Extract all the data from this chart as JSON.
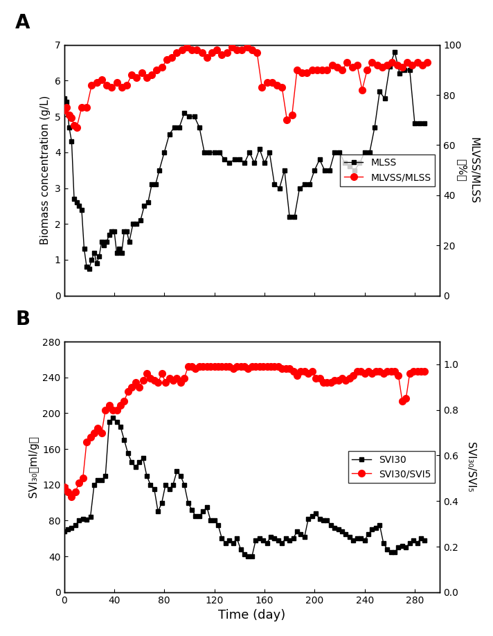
{
  "panel_A": {
    "MLSS_x": [
      0,
      2,
      4,
      6,
      8,
      10,
      12,
      14,
      16,
      18,
      20,
      22,
      24,
      26,
      28,
      30,
      32,
      34,
      36,
      38,
      40,
      42,
      44,
      46,
      48,
      50,
      52,
      55,
      58,
      61,
      64,
      67,
      70,
      73,
      76,
      80,
      84,
      88,
      92,
      96,
      100,
      104,
      108,
      112,
      116,
      120,
      124,
      128,
      132,
      136,
      140,
      144,
      148,
      152,
      156,
      160,
      164,
      168,
      172,
      176,
      180,
      184,
      188,
      192,
      196,
      200,
      204,
      208,
      212,
      216,
      220,
      224,
      228,
      232,
      236,
      240,
      244,
      248,
      252,
      256,
      260,
      264,
      268,
      272,
      276,
      280,
      284,
      288
    ],
    "MLSS_y": [
      5.5,
      5.4,
      4.7,
      4.3,
      2.7,
      2.6,
      2.5,
      2.4,
      1.3,
      0.8,
      0.75,
      1.0,
      1.2,
      0.9,
      1.1,
      1.5,
      1.4,
      1.5,
      1.7,
      1.8,
      1.8,
      1.2,
      1.3,
      1.2,
      1.8,
      1.8,
      1.5,
      2.0,
      2.0,
      2.1,
      2.5,
      2.6,
      3.1,
      3.1,
      3.5,
      4.0,
      4.5,
      4.7,
      4.7,
      5.1,
      5.0,
      5.0,
      4.7,
      4.0,
      4.0,
      4.0,
      4.0,
      3.8,
      3.7,
      3.8,
      3.8,
      3.7,
      4.0,
      3.7,
      4.1,
      3.7,
      4.0,
      3.1,
      3.0,
      3.5,
      2.2,
      2.2,
      3.0,
      3.1,
      3.1,
      3.5,
      3.8,
      3.5,
      3.5,
      4.0,
      4.0,
      3.7,
      3.6,
      3.5,
      3.7,
      4.0,
      4.0,
      4.7,
      5.7,
      5.5,
      6.4,
      6.8,
      6.2,
      6.3,
      6.3,
      4.8,
      4.8,
      4.8
    ],
    "MLVSS_x": [
      0,
      2,
      4,
      6,
      8,
      10,
      14,
      18,
      22,
      26,
      30,
      34,
      38,
      42,
      46,
      50,
      54,
      58,
      62,
      66,
      70,
      74,
      78,
      82,
      86,
      90,
      94,
      98,
      102,
      106,
      110,
      114,
      118,
      122,
      126,
      130,
      134,
      138,
      142,
      146,
      150,
      154,
      158,
      162,
      166,
      170,
      174,
      178,
      182,
      186,
      190,
      194,
      198,
      202,
      206,
      210,
      214,
      218,
      222,
      226,
      230,
      234,
      238,
      242,
      246,
      250,
      254,
      258,
      262,
      266,
      270,
      274,
      278,
      282,
      286,
      290
    ],
    "MLVSS_y": [
      74,
      75,
      72,
      71,
      68,
      67,
      75,
      75,
      84,
      85,
      86,
      84,
      83,
      85,
      83,
      84,
      88,
      87,
      89,
      87,
      88,
      90,
      91,
      94,
      95,
      97,
      98,
      99,
      98,
      98,
      97,
      95,
      97,
      98,
      96,
      97,
      99,
      98,
      98,
      99,
      98,
      97,
      83,
      85,
      85,
      84,
      83,
      70,
      72,
      90,
      89,
      89,
      90,
      90,
      90,
      90,
      92,
      91,
      90,
      93,
      91,
      92,
      82,
      90,
      93,
      92,
      91,
      92,
      93,
      92,
      91,
      93,
      92,
      93,
      92,
      93
    ],
    "xlim": [
      0,
      300
    ],
    "ylim_left": [
      0,
      7
    ],
    "ylim_right": [
      0,
      100
    ],
    "yticks_left": [
      0,
      1,
      2,
      3,
      4,
      5,
      6,
      7
    ],
    "yticks_right": [
      0,
      20,
      40,
      60,
      80,
      100
    ],
    "ylabel_left": "Biomass concentration (g/L)",
    "ylabel_right": "MLVSS/MLSS（%）",
    "legend_MLSS": "MLSS",
    "legend_MLVSS": "MLVSS/MLSS",
    "panel_label": "A"
  },
  "panel_B": {
    "SVI30_x": [
      0,
      3,
      6,
      9,
      12,
      15,
      18,
      21,
      24,
      27,
      30,
      33,
      36,
      39,
      42,
      45,
      48,
      51,
      54,
      57,
      60,
      63,
      66,
      69,
      72,
      75,
      78,
      81,
      84,
      87,
      90,
      93,
      96,
      99,
      102,
      105,
      108,
      111,
      114,
      117,
      120,
      123,
      126,
      129,
      132,
      135,
      138,
      141,
      144,
      147,
      150,
      153,
      156,
      159,
      162,
      165,
      168,
      171,
      174,
      177,
      180,
      183,
      186,
      189,
      192,
      195,
      198,
      201,
      204,
      207,
      210,
      213,
      216,
      219,
      222,
      225,
      228,
      231,
      234,
      237,
      240,
      243,
      246,
      249,
      252,
      255,
      258,
      261,
      264,
      267,
      270,
      273,
      276,
      279,
      282,
      285,
      288
    ],
    "SVI30_y": [
      68,
      70,
      72,
      75,
      80,
      82,
      81,
      84,
      120,
      125,
      125,
      130,
      190,
      195,
      190,
      185,
      170,
      155,
      145,
      140,
      145,
      150,
      130,
      120,
      115,
      90,
      100,
      120,
      115,
      120,
      135,
      130,
      120,
      100,
      92,
      85,
      85,
      90,
      95,
      80,
      80,
      75,
      60,
      55,
      58,
      55,
      60,
      48,
      42,
      40,
      40,
      58,
      60,
      58,
      55,
      62,
      60,
      58,
      55,
      60,
      58,
      60,
      68,
      65,
      62,
      82,
      85,
      88,
      82,
      80,
      80,
      75,
      72,
      70,
      68,
      65,
      62,
      58,
      60,
      60,
      58,
      65,
      70,
      72,
      75,
      55,
      48,
      45,
      45,
      50,
      52,
      50,
      55,
      58,
      55,
      60,
      58
    ],
    "SVI_ratio_x": [
      0,
      3,
      6,
      9,
      12,
      15,
      18,
      21,
      24,
      27,
      30,
      33,
      36,
      39,
      42,
      45,
      48,
      51,
      54,
      57,
      60,
      63,
      66,
      69,
      72,
      75,
      78,
      81,
      84,
      87,
      90,
      93,
      96,
      99,
      102,
      105,
      108,
      111,
      114,
      117,
      120,
      123,
      126,
      129,
      132,
      135,
      138,
      141,
      144,
      147,
      150,
      153,
      156,
      159,
      162,
      165,
      168,
      171,
      174,
      177,
      180,
      183,
      186,
      189,
      192,
      195,
      198,
      201,
      204,
      207,
      210,
      213,
      216,
      219,
      222,
      225,
      228,
      231,
      234,
      237,
      240,
      243,
      246,
      249,
      252,
      255,
      258,
      261,
      264,
      267,
      270,
      273,
      276,
      279,
      282,
      285,
      288
    ],
    "SVI_ratio_y": [
      0.46,
      0.44,
      0.42,
      0.44,
      0.48,
      0.5,
      0.66,
      0.68,
      0.7,
      0.72,
      0.7,
      0.8,
      0.82,
      0.8,
      0.8,
      0.82,
      0.84,
      0.88,
      0.9,
      0.92,
      0.9,
      0.93,
      0.96,
      0.94,
      0.93,
      0.92,
      0.96,
      0.92,
      0.94,
      0.93,
      0.94,
      0.92,
      0.94,
      0.99,
      0.99,
      0.98,
      0.99,
      0.99,
      0.99,
      0.99,
      0.99,
      0.99,
      0.99,
      0.99,
      0.99,
      0.98,
      0.99,
      0.99,
      0.99,
      0.98,
      0.99,
      0.99,
      0.99,
      0.99,
      0.99,
      0.99,
      0.99,
      0.99,
      0.98,
      0.98,
      0.98,
      0.97,
      0.95,
      0.97,
      0.97,
      0.96,
      0.97,
      0.94,
      0.94,
      0.92,
      0.92,
      0.92,
      0.93,
      0.93,
      0.94,
      0.93,
      0.94,
      0.95,
      0.97,
      0.97,
      0.96,
      0.97,
      0.96,
      0.97,
      0.97,
      0.96,
      0.97,
      0.97,
      0.97,
      0.95,
      0.84,
      0.85,
      0.96,
      0.97,
      0.97,
      0.97,
      0.97
    ],
    "xlim": [
      0,
      300
    ],
    "ylim_left": [
      0,
      280
    ],
    "ylim_right": [
      0.0,
      1.1
    ],
    "yticks_left": [
      0,
      40,
      80,
      120,
      160,
      200,
      240,
      280
    ],
    "yticks_right": [
      0.0,
      0.2,
      0.4,
      0.6,
      0.8,
      1.0
    ],
    "ylabel_left": "SVI₃₀（ml/g）",
    "ylabel_right": "SVI₃₀/SVI₅",
    "legend_SVI30": "SVI30",
    "legend_ratio": "SVI30/SVI5",
    "panel_label": "B"
  },
  "xlabel": "Time (day)",
  "xticks": [
    0,
    40,
    80,
    120,
    160,
    200,
    240,
    280
  ],
  "black_color": "#000000",
  "red_color": "#FF0000",
  "background_color": "#ffffff",
  "line_width": 1.0,
  "marker_size_square": 5,
  "marker_size_circle": 7
}
